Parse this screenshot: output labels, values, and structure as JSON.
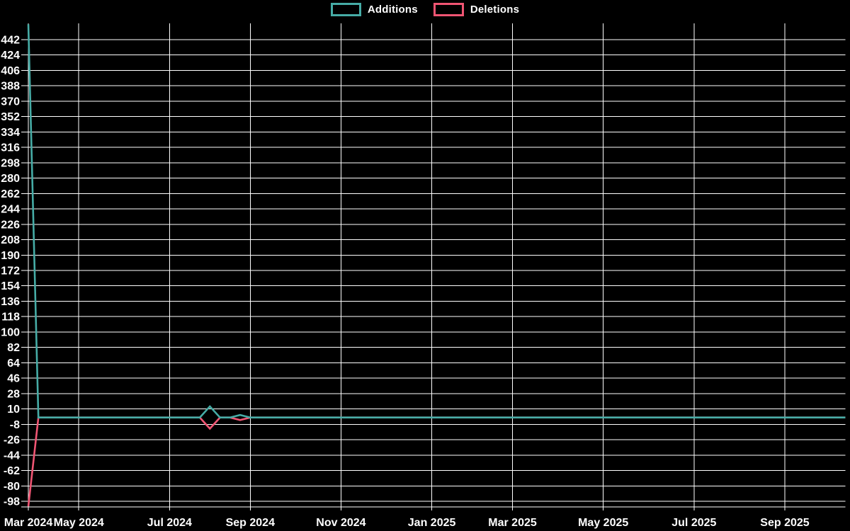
{
  "colors": {
    "background": "#000000",
    "grid": "#ffffff",
    "text": "#ffffff",
    "additions": "#46aca6",
    "deletions": "#f05573"
  },
  "legend": {
    "additions_label": "Additions",
    "deletions_label": "Deletions"
  },
  "chart_data": {
    "type": "line",
    "title": "",
    "legend_position": "top-center",
    "grid": true,
    "y_axis": {
      "tick_max": 442,
      "tick_min": -98,
      "tick_step": 18,
      "tick_labels": [
        442,
        424,
        406,
        388,
        370,
        352,
        334,
        316,
        298,
        280,
        262,
        244,
        226,
        208,
        190,
        172,
        154,
        136,
        118,
        100,
        82,
        64,
        46,
        28,
        10,
        -8,
        -26,
        -44,
        -62,
        -80,
        -98
      ],
      "range": [
        -104,
        460
      ]
    },
    "x_axis": {
      "unit": "week",
      "total_weeks": 81,
      "ticks": [
        {
          "label": "Mar 2024",
          "week": 0
        },
        {
          "label": "May 2024",
          "week": 5
        },
        {
          "label": "Jul 2024",
          "week": 14
        },
        {
          "label": "Sep 2024",
          "week": 22
        },
        {
          "label": "Nov 2024",
          "week": 31
        },
        {
          "label": "Jan 2025",
          "week": 40
        },
        {
          "label": "Mar 2025",
          "week": 48
        },
        {
          "label": "May 2025",
          "week": 57
        },
        {
          "label": "Jul 2025",
          "week": 66
        },
        {
          "label": "Sep 2025",
          "week": 75
        }
      ]
    },
    "series": [
      {
        "name": "Additions",
        "color": "#46aca6",
        "default_value": 0,
        "points_nonzero": [
          {
            "week": 0,
            "value": 460
          },
          {
            "week": 18,
            "value": 13
          },
          {
            "week": 21,
            "value": 3
          }
        ]
      },
      {
        "name": "Deletions",
        "color": "#f05573",
        "default_value": 0,
        "points_nonzero": [
          {
            "week": 0,
            "value": -104
          },
          {
            "week": 18,
            "value": -13
          },
          {
            "week": 21,
            "value": -3
          }
        ]
      }
    ]
  }
}
